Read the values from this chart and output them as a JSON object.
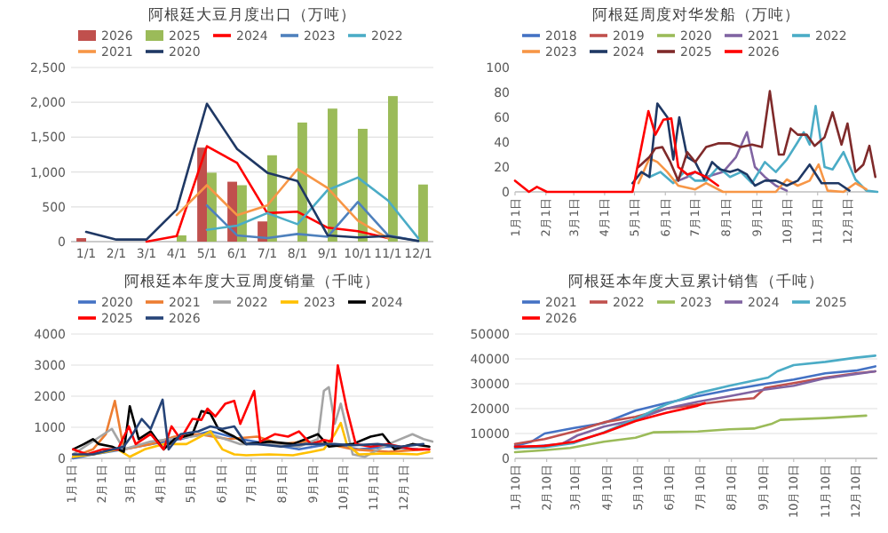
{
  "chart_data": [
    {
      "type": "bar",
      "title": "阿根廷大豆月度出口（万吨）",
      "categories": [
        "1/1",
        "2/1",
        "3/1",
        "4/1",
        "5/1",
        "6/1",
        "7/1",
        "8/1",
        "9/1",
        "10/1",
        "11/1",
        "12/1"
      ],
      "ylim": [
        0,
        2500
      ],
      "yticks": [
        0,
        500,
        {
          "value": 1000,
          "label": "1,000"
        },
        {
          "value": 1500,
          "label": "1,500"
        },
        {
          "value": 2000,
          "label": "2,000"
        },
        {
          "value": 2500,
          "label": "2,500"
        }
      ],
      "grid": "y",
      "legend": "top",
      "series": [
        {
          "name": "2026",
          "color": "#c0504d",
          "values": [
            50,
            null,
            null,
            null,
            1350,
            860,
            290,
            null,
            null,
            null,
            null,
            null
          ]
        },
        {
          "name": "2025",
          "color": "#9bbb59",
          "values": [
            null,
            null,
            null,
            90,
            990,
            810,
            1240,
            1710,
            1910,
            1620,
            2090,
            820
          ]
        },
        {
          "name": "2024",
          "type": "line",
          "color": "#ff0000",
          "values": [
            null,
            null,
            0,
            80,
            1370,
            1130,
            410,
            430,
            200,
            150,
            50,
            null
          ]
        },
        {
          "name": "2023",
          "type": "line",
          "color": "#4f81bd",
          "values": [
            null,
            null,
            null,
            null,
            520,
            90,
            50,
            110,
            70,
            570,
            90,
            10
          ]
        },
        {
          "name": "2022",
          "type": "line",
          "color": "#4bacc6",
          "values": [
            null,
            null,
            null,
            null,
            170,
            230,
            410,
            250,
            740,
            920,
            590,
            50
          ]
        },
        {
          "name": "2021",
          "type": "line",
          "color": "#f79646",
          "values": [
            null,
            null,
            null,
            380,
            810,
            380,
            520,
            1040,
            770,
            300,
            50,
            null
          ]
        },
        {
          "name": "2020",
          "type": "line",
          "color": "#1f3864",
          "values": [
            140,
            30,
            30,
            460,
            1980,
            1330,
            990,
            870,
            90,
            60,
            80,
            10
          ]
        }
      ]
    },
    {
      "type": "line",
      "title": "阿根廷周度对华发船（万吨）",
      "xlim": [
        "--01-01",
        "--12-31"
      ],
      "xticks": [
        {
          "value": "--01-01",
          "label": "1月1日"
        },
        {
          "value": "--02-01",
          "label": "2月1日"
        },
        {
          "value": "--03-01",
          "label": "3月1日"
        },
        {
          "value": "--04-01",
          "label": "4月1日"
        },
        {
          "value": "--05-01",
          "label": "5月1日"
        },
        {
          "value": "--06-01",
          "label": "6月1日"
        },
        {
          "value": "--07-01",
          "label": "7月1日"
        },
        {
          "value": "--08-01",
          "label": "8月1日"
        },
        {
          "value": "--09-01",
          "label": "9月1日"
        },
        {
          "value": "--10-01",
          "label": "10月1日"
        },
        {
          "value": "--11-01",
          "label": "11月1日"
        },
        {
          "value": "--12-01",
          "label": "12月1日"
        }
      ],
      "ylim": [
        0,
        100
      ],
      "yticks": [
        0,
        20,
        40,
        60,
        80,
        100
      ],
      "legend": "top",
      "series": [
        {
          "name": "2018",
          "color": "#4472c4"
        },
        {
          "name": "2019",
          "color": "#c0504d"
        },
        {
          "name": "2020",
          "color": "#9bbb59"
        },
        {
          "name": "2021",
          "color": "#8064a2",
          "x": [
            "--06-14",
            "--06-23",
            "--07-01",
            "--07-12",
            "--07-29",
            "--08-11",
            "--08-22",
            "--08-30",
            "--09-09",
            "--09-20",
            "--10-01"
          ],
          "values": [
            9,
            12,
            16,
            12,
            16,
            28,
            48,
            20,
            12,
            5,
            1
          ]
        },
        {
          "name": "2022",
          "color": "#4bacc6",
          "x": [
            "--05-16",
            "--05-27",
            "--06-09",
            "--06-20",
            "--07-01",
            "--07-12",
            "--07-24",
            "--08-05",
            "--08-16",
            "--08-27",
            "--09-09",
            "--09-20",
            "--10-01",
            "--10-12",
            "--10-18",
            "--10-24",
            "--10-30",
            "--11-08",
            "--11-16",
            "--11-27",
            "--12-09",
            "--12-20",
            "--12-31"
          ],
          "values": [
            12,
            16,
            7,
            16,
            9,
            9,
            20,
            12,
            16,
            7,
            24,
            16,
            26,
            40,
            48,
            38,
            69,
            20,
            18,
            32,
            10,
            1,
            0
          ]
        },
        {
          "name": "2023",
          "color": "#f79646",
          "x": [
            "--05-05",
            "--05-16",
            "--05-24",
            "--06-03",
            "--06-14",
            "--07-01",
            "--07-12",
            "--07-29",
            "--09-20",
            "--10-01",
            "--10-12",
            "--10-24",
            "--11-02",
            "--11-11",
            "--11-27",
            "--12-09",
            "--12-20"
          ],
          "values": [
            7,
            27,
            24,
            16,
            5,
            2,
            7,
            0,
            0,
            10,
            5,
            9,
            22,
            1,
            0,
            7,
            2
          ]
        },
        {
          "name": "2024",
          "color": "#1f3864",
          "x": [
            "--04-29",
            "--05-08",
            "--05-16",
            "--05-24",
            "--06-03",
            "--06-09",
            "--06-15",
            "--06-23",
            "--07-01",
            "--07-10",
            "--07-18",
            "--07-26",
            "--08-05",
            "--08-13",
            "--08-22",
            "--08-30",
            "--09-09",
            "--09-20",
            "--10-01",
            "--10-12",
            "--10-24",
            "--11-05",
            "--11-22",
            "--12-03"
          ],
          "values": [
            7,
            16,
            12,
            71,
            60,
            26,
            60,
            28,
            24,
            10,
            24,
            18,
            16,
            18,
            14,
            5,
            9,
            9,
            5,
            9,
            22,
            7,
            7,
            1
          ]
        },
        {
          "name": "2025",
          "color": "#7f2a2a",
          "x": [
            "--05-05",
            "--05-16",
            "--05-22",
            "--05-29",
            "--06-06",
            "--06-14",
            "--06-23",
            "--07-01",
            "--07-12",
            "--07-24",
            "--08-05",
            "--08-16",
            "--08-27",
            "--09-06",
            "--09-14",
            "--09-23",
            "--09-28",
            "--10-05",
            "--10-12",
            "--10-21",
            "--10-29",
            "--11-08",
            "--11-16",
            "--11-25",
            "--12-01",
            "--12-09",
            "--12-17",
            "--12-23",
            "--12-29"
          ],
          "values": [
            20,
            28,
            35,
            36,
            24,
            9,
            32,
            24,
            36,
            39,
            39,
            36,
            38,
            36,
            81,
            30,
            30,
            51,
            46,
            46,
            37,
            44,
            64,
            38,
            55,
            16,
            22,
            37,
            12
          ]
        },
        {
          "name": "2026",
          "color": "#ff0000",
          "x": [
            "--01-01",
            "--01-15",
            "--01-23",
            "--02-02",
            "--04-29",
            "--05-15",
            "--05-22",
            "--05-30",
            "--06-07",
            "--06-14",
            "--06-23",
            "--07-01",
            "--07-12",
            "--07-24"
          ],
          "values": [
            9,
            0,
            4,
            0,
            0,
            65,
            46,
            58,
            59,
            20,
            14,
            16,
            12,
            5
          ]
        }
      ]
    },
    {
      "type": "line",
      "title": "阿根廷本年度大豆周度销量（千吨）",
      "xlim": [
        "--01-01",
        "--12-31"
      ],
      "xticks": [
        {
          "value": "--01-01",
          "label": "1月1日"
        },
        {
          "value": "--02-01",
          "label": "2月1日"
        },
        {
          "value": "--03-01",
          "label": "3月1日"
        },
        {
          "value": "--04-01",
          "label": "4月1日"
        },
        {
          "value": "--05-01",
          "label": "5月1日"
        },
        {
          "value": "--06-01",
          "label": "6月1日"
        },
        {
          "value": "--07-01",
          "label": "7月1日"
        },
        {
          "value": "--08-01",
          "label": "8月1日"
        },
        {
          "value": "--09-01",
          "label": "9月1日"
        },
        {
          "value": "--10-01",
          "label": "10月1日"
        },
        {
          "value": "--11-01",
          "label": "11月1日"
        },
        {
          "value": "--12-01",
          "label": "12月1日"
        }
      ],
      "ylim": [
        0,
        4000
      ],
      "yticks": [
        0,
        1000,
        2000,
        3000,
        4000
      ],
      "grid": "y",
      "legend": "top",
      "series": [
        {
          "name": "2020",
          "color": "#4472c4",
          "x": [
            "--01-03",
            "--01-23",
            "--02-23",
            "--03-22",
            "--04-21",
            "--05-21",
            "--06-20",
            "--07-19",
            "--08-18",
            "--09-17",
            "--10-17",
            "--11-16",
            "--12-15"
          ],
          "values": [
            0,
            130,
            290,
            460,
            620,
            870,
            620,
            460,
            290,
            460,
            290,
            380,
            290
          ]
        },
        {
          "name": "2021",
          "color": "#ed7d31",
          "x": [
            "--01-03",
            "--01-23",
            "--02-05",
            "--02-14",
            "--02-23",
            "--03-22",
            "--04-15",
            "--05-09",
            "--06-08",
            "--07-07",
            "--07-31",
            "--08-24",
            "--09-17",
            "--10-11",
            "--11-16",
            "--12-21"
          ],
          "values": [
            50,
            290,
            780,
            1850,
            290,
            460,
            700,
            780,
            620,
            700,
            460,
            540,
            460,
            290,
            210,
            290
          ]
        },
        {
          "name": "2022",
          "color": "#a5a5a5",
          "x": [
            "--01-03",
            "--02-11",
            "--02-23",
            "--03-22",
            "--05-21",
            "--06-20",
            "--07-19",
            "--08-18",
            "--09-06",
            "--09-12",
            "--09-17",
            "--09-23",
            "--09-29",
            "--10-11",
            "--10-23",
            "--11-16",
            "--12-10",
            "--12-21",
            "--12-30"
          ],
          "values": [
            130,
            950,
            290,
            540,
            780,
            460,
            460,
            380,
            620,
            2170,
            2290,
            1110,
            1760,
            130,
            50,
            460,
            780,
            620,
            540
          ]
        },
        {
          "name": "2023",
          "color": "#ffc000",
          "x": [
            "--01-03",
            "--01-23",
            "--02-17",
            "--03-01",
            "--03-16",
            "--04-04",
            "--04-27",
            "--05-21",
            "--06-02",
            "--06-14",
            "--06-26",
            "--07-19",
            "--08-12",
            "--08-30",
            "--09-12",
            "--09-23",
            "--09-29",
            "--10-05",
            "--10-17",
            "--11-16",
            "--12-15",
            "--12-27"
          ],
          "values": [
            50,
            130,
            290,
            50,
            290,
            460,
            460,
            870,
            290,
            130,
            100,
            130,
            100,
            210,
            290,
            780,
            1140,
            460,
            130,
            160,
            130,
            210
          ]
        },
        {
          "name": "2024",
          "color": "#000000",
          "x": [
            "--01-03",
            "--01-14",
            "--01-23",
            "--01-29",
            "--02-11",
            "--02-23",
            "--03-01",
            "--03-10",
            "--03-22",
            "--04-04",
            "--04-15",
            "--05-03",
            "--05-12",
            "--05-21",
            "--05-29",
            "--06-14",
            "--06-26",
            "--07-19",
            "--08-12",
            "--09-06",
            "--09-17",
            "--10-11",
            "--10-29",
            "--11-10",
            "--11-22",
            "--12-10",
            "--12-27"
          ],
          "values": [
            290,
            460,
            620,
            460,
            380,
            210,
            1680,
            620,
            870,
            290,
            620,
            780,
            1520,
            1440,
            950,
            700,
            460,
            540,
            460,
            780,
            380,
            460,
            700,
            780,
            290,
            460,
            380
          ]
        },
        {
          "name": "2025",
          "color": "#ff0000",
          "x": [
            "--01-03",
            "--01-17",
            "--02-02",
            "--02-17",
            "--02-28",
            "--03-07",
            "--03-22",
            "--04-04",
            "--04-12",
            "--04-21",
            "--05-03",
            "--05-12",
            "--05-18",
            "--05-26",
            "--06-05",
            "--06-14",
            "--06-20",
            "--07-04",
            "--07-10",
            "--07-25",
            "--08-07",
            "--08-18",
            "--08-30",
            "--09-12",
            "--09-20",
            "--09-26",
            "--10-05",
            "--10-14",
            "--10-29",
            "--11-16",
            "--12-10",
            "--12-27"
          ],
          "values": [
            290,
            130,
            290,
            290,
            1030,
            460,
            780,
            290,
            1030,
            620,
            1270,
            1240,
            1600,
            1350,
            1760,
            1850,
            1110,
            2170,
            540,
            780,
            700,
            870,
            460,
            590,
            540,
            2990,
            1600,
            460,
            380,
            460,
            290,
            290
          ]
        },
        {
          "name": "2026",
          "color": "#264478",
          "x": [
            "--01-03",
            "--01-23",
            "--02-23",
            "--03-04",
            "--03-13",
            "--03-22",
            "--04-03",
            "--04-09",
            "--04-21",
            "--05-09",
            "--05-21",
            "--06-02",
            "--06-14",
            "--06-26",
            "--07-07",
            "--07-31",
            "--08-24",
            "--09-12",
            "--09-23",
            "--10-11",
            "--11-05",
            "--11-28",
            "--12-21"
          ],
          "values": [
            130,
            130,
            380,
            780,
            1270,
            950,
            1890,
            290,
            780,
            870,
            1030,
            950,
            1030,
            460,
            460,
            380,
            460,
            460,
            460,
            420,
            460,
            380,
            460
          ]
        }
      ]
    },
    {
      "type": "line",
      "title": "阿根廷本年度大豆累计销售（千吨）",
      "xlim": [
        "--01-10",
        "--12-31"
      ],
      "xticks": [
        {
          "value": "--01-10",
          "label": "1月10日"
        },
        {
          "value": "--02-10",
          "label": "2月10日"
        },
        {
          "value": "--03-10",
          "label": "3月10日"
        },
        {
          "value": "--04-10",
          "label": "4月10日"
        },
        {
          "value": "--05-10",
          "label": "5月10日"
        },
        {
          "value": "--06-10",
          "label": "6月10日"
        },
        {
          "value": "--07-10",
          "label": "7月10日"
        },
        {
          "value": "--08-10",
          "label": "8月10日"
        },
        {
          "value": "--09-10",
          "label": "9月10日"
        },
        {
          "value": "--10-10",
          "label": "10月10日"
        },
        {
          "value": "--11-10",
          "label": "11月10日"
        },
        {
          "value": "--12-10",
          "label": "12月10日"
        }
      ],
      "ylim": [
        0,
        50000
      ],
      "yticks": [
        0,
        10000,
        20000,
        30000,
        40000,
        50000
      ],
      "grid": "y",
      "legend": "top",
      "series": [
        {
          "name": "2021",
          "color": "#4472c4",
          "x": [
            "--01-10",
            "--01-26",
            "--02-08",
            "--03-09",
            "--04-07",
            "--05-08",
            "--06-07",
            "--07-08",
            "--08-08",
            "--09-09",
            "--10-10",
            "--11-10",
            "--12-10",
            "--12-29"
          ],
          "values": [
            5000,
            6700,
            10000,
            12200,
            14200,
            19200,
            22200,
            25000,
            27500,
            29700,
            31700,
            34200,
            35300,
            37000
          ]
        },
        {
          "name": "2022",
          "color": "#c0504d",
          "x": [
            "--01-10",
            "--02-08",
            "--03-09",
            "--04-07",
            "--05-08",
            "--06-07",
            "--07-08",
            "--08-08",
            "--09-01",
            "--09-12",
            "--10-10",
            "--11-10",
            "--12-10",
            "--12-29"
          ],
          "values": [
            5800,
            7800,
            10800,
            14500,
            16700,
            20000,
            21700,
            23300,
            24200,
            28300,
            30300,
            32500,
            34200,
            35000
          ]
        },
        {
          "name": "2023",
          "color": "#9bbb59",
          "x": [
            "--01-10",
            "--02-08",
            "--03-05",
            "--04-07",
            "--05-08",
            "--05-26",
            "--07-08",
            "--08-08",
            "--09-01",
            "--09-18",
            "--09-27",
            "--11-10",
            "--12-20"
          ],
          "values": [
            2500,
            3300,
            4200,
            6700,
            8300,
            10500,
            10800,
            11700,
            12000,
            13800,
            15500,
            16200,
            17200
          ]
        },
        {
          "name": "2024",
          "color": "#8064a2",
          "x": [
            "--01-10",
            "--02-25",
            "--03-12",
            "--04-07",
            "--05-08",
            "--06-07",
            "--07-08",
            "--08-08",
            "--09-09",
            "--10-10",
            "--11-10",
            "--12-29"
          ],
          "values": [
            4200,
            5800,
            9200,
            12800,
            15500,
            20000,
            22800,
            25000,
            27500,
            29200,
            32200,
            35000
          ]
        },
        {
          "name": "2025",
          "color": "#4bacc6",
          "x": [
            "--01-10",
            "--02-08",
            "--03-09",
            "--04-07",
            "--05-08",
            "--06-07",
            "--07-08",
            "--08-08",
            "--09-15",
            "--09-24",
            "--10-10",
            "--11-10",
            "--12-10",
            "--12-29"
          ],
          "values": [
            4200,
            4500,
            6200,
            10500,
            15800,
            21700,
            26200,
            29200,
            32500,
            35000,
            37500,
            38800,
            40500,
            41300
          ]
        },
        {
          "name": "2026",
          "color": "#ff0000",
          "x": [
            "--01-10",
            "--02-08",
            "--03-09",
            "--04-07",
            "--05-08",
            "--06-07",
            "--07-08",
            "--07-15"
          ],
          "values": [
            4700,
            5000,
            6700,
            10300,
            15000,
            18300,
            21200,
            22200
          ]
        }
      ]
    }
  ]
}
